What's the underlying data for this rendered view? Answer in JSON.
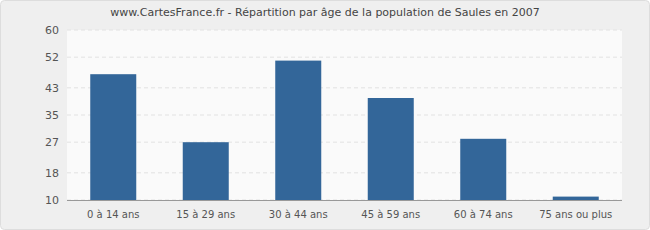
{
  "chart_data": {
    "type": "bar",
    "title": "www.CartesFrance.fr - Répartition par âge de la population de Saules en 2007",
    "categories": [
      "0 à 14 ans",
      "15 à 29 ans",
      "30 à 44 ans",
      "45 à 59 ans",
      "60 à 74 ans",
      "75 ans ou plus"
    ],
    "values": [
      47,
      27,
      51,
      40,
      28,
      11
    ],
    "color": "#336699",
    "ylim": [
      10,
      60
    ],
    "yticks": [
      10,
      18,
      27,
      35,
      43,
      52,
      60
    ],
    "grid": true
  }
}
